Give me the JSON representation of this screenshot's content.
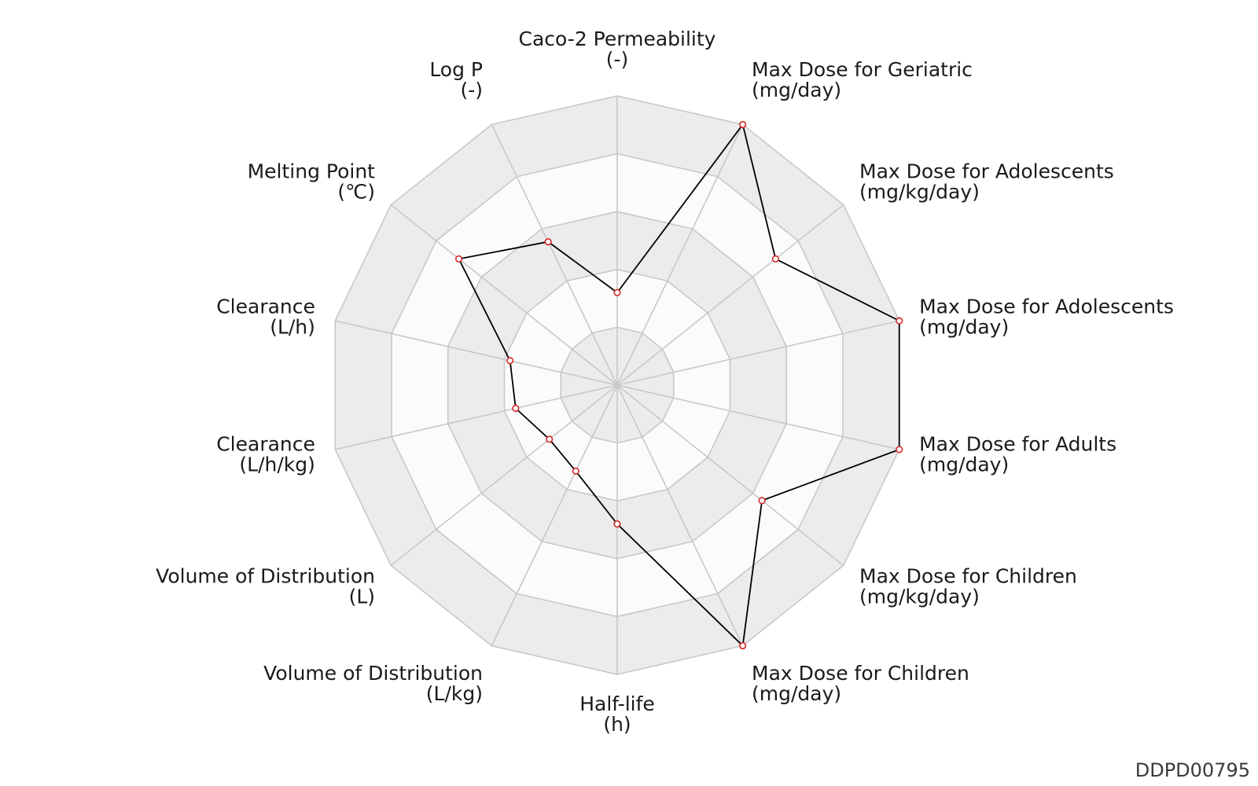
{
  "chart_data": {
    "type": "radar",
    "title": "",
    "axes": [
      {
        "name": "Caco-2 Permeability",
        "unit": "(-)"
      },
      {
        "name": "Max Dose for Geriatric",
        "unit": "(mg/day)"
      },
      {
        "name": "Max Dose for Adolescents",
        "unit": "(mg/kg/day)"
      },
      {
        "name": "Max Dose for Adolescents",
        "unit": "(mg/day)"
      },
      {
        "name": "Max Dose for Adults",
        "unit": "(mg/day)"
      },
      {
        "name": "Max Dose for Children",
        "unit": "(mg/kg/day)"
      },
      {
        "name": "Max Dose for Children",
        "unit": "(mg/day)"
      },
      {
        "name": "Half-life",
        "unit": "(h)"
      },
      {
        "name": "Volume of Distribution",
        "unit": "(L/kg)"
      },
      {
        "name": "Volume of Distribution",
        "unit": "(L)"
      },
      {
        "name": "Clearance",
        "unit": "(L/h/kg)"
      },
      {
        "name": "Clearance",
        "unit": "(L/h)"
      },
      {
        "name": "Melting Point",
        "unit": "(℃)"
      },
      {
        "name": "Log P",
        "unit": "(-)"
      }
    ],
    "rings": 5,
    "range": [
      0,
      1
    ],
    "values": [
      0.32,
      1.0,
      0.7,
      1.0,
      1.0,
      0.64,
      1.0,
      0.48,
      0.33,
      0.3,
      0.36,
      0.38,
      0.7,
      0.55
    ],
    "series_color": "#000000",
    "marker_color": "#d62728",
    "grid_color": "#c8c8c8",
    "band_color": "#ececec",
    "ring_fill_color": "#fbfbfb"
  },
  "caption": "DDPD00795"
}
